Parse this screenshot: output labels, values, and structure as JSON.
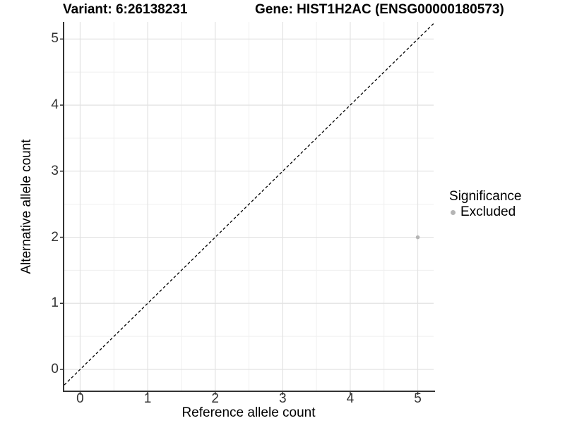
{
  "figure": {
    "title_left": "Variant: 6:26138231",
    "title_right": "Gene: HIST1H2AC (ENSG00000180573)"
  },
  "chart_data": {
    "type": "scatter",
    "title": "Variant: 6:26138231    Gene: HIST1H2AC (ENSG00000180573)",
    "xlabel": "Reference allele count",
    "ylabel": "Alternative allele count",
    "x_ticks": [
      0,
      1,
      2,
      3,
      4,
      5
    ],
    "y_ticks": [
      0,
      1,
      2,
      3,
      4,
      5
    ],
    "x_minor": [
      0.5,
      1.5,
      2.5,
      3.5,
      4.5
    ],
    "y_minor": [
      0.5,
      1.5,
      2.5,
      3.5,
      4.5
    ],
    "xlim": [
      -0.235,
      5.235
    ],
    "ylim": [
      -0.32,
      5.26
    ],
    "grid": true,
    "legend_position": "right",
    "series": [
      {
        "name": "Excluded",
        "color": "#b5b5b5",
        "points": [
          {
            "x": 5,
            "y": 2
          }
        ]
      }
    ],
    "reference_line": {
      "kind": "abline",
      "slope": 1,
      "intercept": 0,
      "linetype": "dashed",
      "color": "#000000"
    },
    "legend": {
      "title": "Significance",
      "items": [
        {
          "label": "Excluded",
          "color": "#b5b5b5"
        }
      ]
    },
    "colors": {
      "grid_major": "#e2e2e2",
      "grid_minor": "#efefef",
      "axis_line": "#333333",
      "tick_label": "#333333",
      "point": "#b5b5b5"
    }
  }
}
